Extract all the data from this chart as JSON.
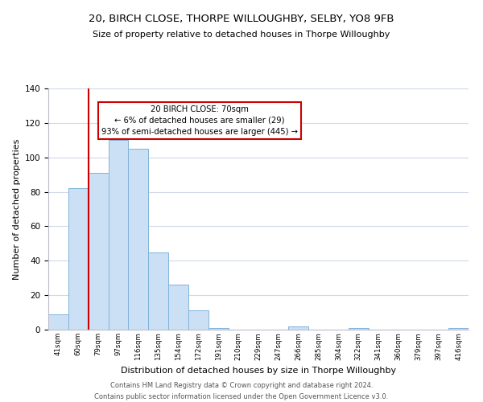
{
  "title1": "20, BIRCH CLOSE, THORPE WILLOUGHBY, SELBY, YO8 9FB",
  "title2": "Size of property relative to detached houses in Thorpe Willoughby",
  "xlabel": "Distribution of detached houses by size in Thorpe Willoughby",
  "ylabel": "Number of detached properties",
  "bin_labels": [
    "41sqm",
    "60sqm",
    "79sqm",
    "97sqm",
    "116sqm",
    "135sqm",
    "154sqm",
    "172sqm",
    "191sqm",
    "210sqm",
    "229sqm",
    "247sqm",
    "266sqm",
    "285sqm",
    "304sqm",
    "322sqm",
    "341sqm",
    "360sqm",
    "379sqm",
    "397sqm",
    "416sqm"
  ],
  "bar_heights": [
    9,
    82,
    91,
    110,
    105,
    45,
    26,
    11,
    1,
    0,
    0,
    0,
    2,
    0,
    0,
    1,
    0,
    0,
    0,
    0,
    1
  ],
  "bar_color": "#cce0f5",
  "bar_edge_color": "#7fb3d9",
  "vline_color": "#cc0000",
  "ylim": [
    0,
    140
  ],
  "yticks": [
    0,
    20,
    40,
    60,
    80,
    100,
    120,
    140
  ],
  "annotation_text": "20 BIRCH CLOSE: 70sqm\n← 6% of detached houses are smaller (29)\n93% of semi-detached houses are larger (445) →",
  "annotation_box_edge": "#cc0000",
  "footer1": "Contains HM Land Registry data © Crown copyright and database right 2024.",
  "footer2": "Contains public sector information licensed under the Open Government Licence v3.0.",
  "background_color": "#ffffff",
  "grid_color": "#d0d8e8"
}
